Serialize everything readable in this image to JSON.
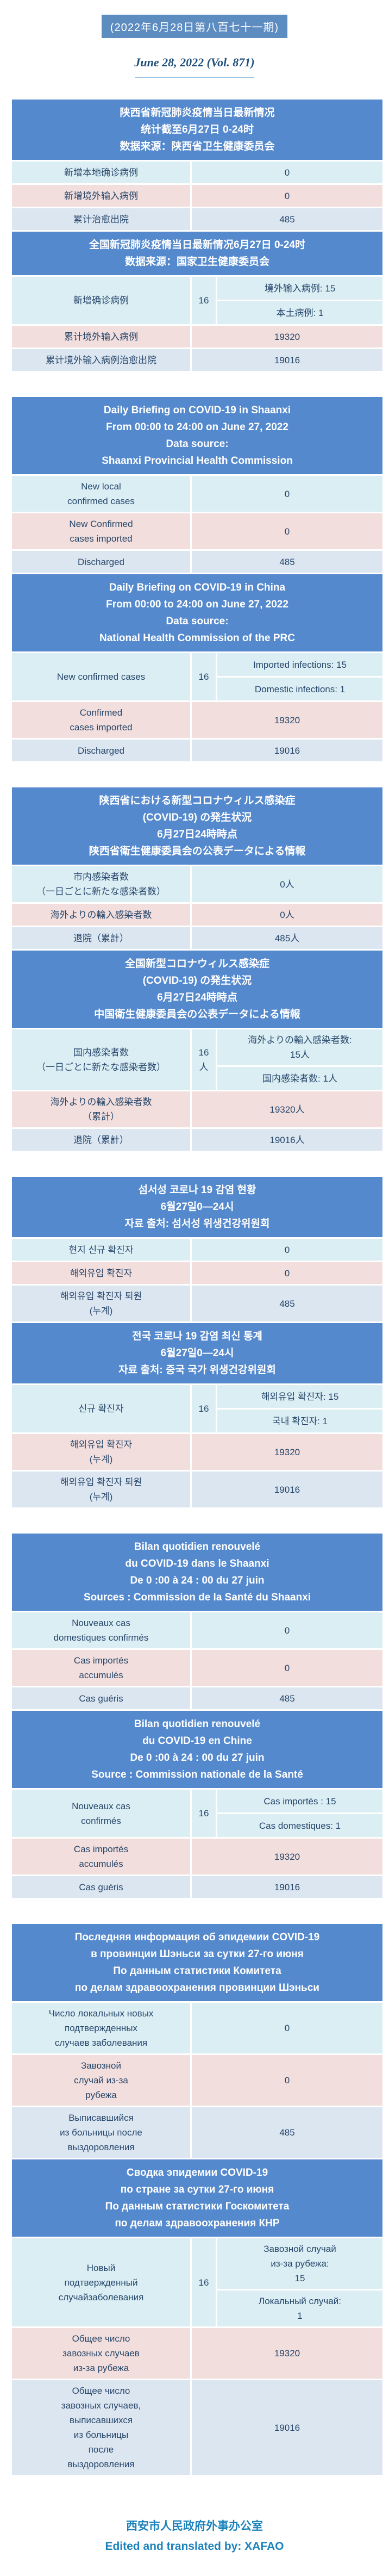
{
  "header": {
    "issue_badge": "(2022年6月28日第八百七十一期)",
    "date_line": "June 28, 2022 (Vol. 871)"
  },
  "colors": {
    "header_blue": "#5589cd",
    "badge_blue": "#5d8cc1",
    "row_cyan": "#dbeef4",
    "row_pink": "#f2dedc",
    "row_periwinkle": "#dce6f1",
    "text_navy": "#27476b",
    "footer_blue": "#1b82bb",
    "date_navy": "#1f4e79"
  },
  "sections": [
    {
      "id": "zh",
      "tables": [
        {
          "header_lines": [
            "陕西省新冠肺炎疫情当日最新情况",
            "统计截至6月27日 0-24时",
            "数据来源：陕西省卫生健康委员会"
          ],
          "rows": [
            {
              "label": "新增本地确诊病例",
              "value": "0",
              "tone": "cyan"
            },
            {
              "label": "新增境外输入病例",
              "value": "0",
              "tone": "pink"
            },
            {
              "label": "累计治愈出院",
              "value": "485",
              "tone": "peri"
            }
          ]
        },
        {
          "header_lines": [
            "全国新冠肺炎疫情当日最新情况6月27日 0-24时",
            "数据来源：国家卫生健康委员会"
          ],
          "rows": [
            {
              "label": "新增确诊病例",
              "value": "16",
              "tone": "cyan",
              "subs": [
                "境外输入病例: 15",
                "本土病例: 1"
              ]
            },
            {
              "label": "累计境外输入病例",
              "value": "19320",
              "tone": "pink"
            },
            {
              "label": "累计境外输入病例治愈出院",
              "value": "19016",
              "tone": "peri"
            }
          ]
        }
      ]
    },
    {
      "id": "en",
      "tables": [
        {
          "header_lines": [
            "Daily Briefing on COVID-19 in Shaanxi",
            "From 00:00 to 24:00 on June 27, 2022",
            "Data source:",
            "Shaanxi Provincial Health Commission"
          ],
          "rows": [
            {
              "label": "New local\nconfirmed cases",
              "value": "0",
              "tone": "cyan"
            },
            {
              "label": "New Confirmed\ncases imported",
              "value": "0",
              "tone": "pink"
            },
            {
              "label": "Discharged",
              "value": "485",
              "tone": "peri"
            }
          ]
        },
        {
          "header_lines": [
            "Daily Briefing on COVID-19 in China",
            "From 00:00 to 24:00 on June 27, 2022",
            "Data source:",
            "National Health Commission of the PRC"
          ],
          "rows": [
            {
              "label": "New confirmed cases",
              "value": "16",
              "tone": "cyan",
              "subs": [
                "Imported infections: 15",
                "Domestic infections: 1"
              ]
            },
            {
              "label": "Confirmed\ncases imported",
              "value": "19320",
              "tone": "pink"
            },
            {
              "label": "Discharged",
              "value": "19016",
              "tone": "peri"
            }
          ]
        }
      ]
    },
    {
      "id": "ja",
      "tables": [
        {
          "header_lines": [
            "陕西省における新型コロナウィルス感染症",
            "(COVID-19) の発生状況",
            "6月27日24時時点",
            "陕西省衛生健康委員会の公表データによる情報"
          ],
          "rows": [
            {
              "label": "市内感染者数\n（一日ごとに新たな感染者数）",
              "value": "0人",
              "tone": "cyan"
            },
            {
              "label": "海外よりの輸入感染者数",
              "value": "0人",
              "tone": "pink"
            },
            {
              "label": "退院（累計）",
              "value": "485人",
              "tone": "peri"
            }
          ]
        },
        {
          "header_lines": [
            "全国新型コロナウィルス感染症",
            "(COVID-19) の発生状況",
            "6月27日24時時点",
            "中国衛生健康委員会の公表データによる情報"
          ],
          "rows": [
            {
              "label": "国内感染者数\n（一日ごとに新たな感染者数）",
              "value": "16人",
              "tone": "cyan",
              "subs": [
                "海外よりの輸入感染者数:\n15人",
                "国内感染者数: 1人"
              ]
            },
            {
              "label": "海外よりの輸入感染者数\n（累計）",
              "value": "19320人",
              "tone": "pink"
            },
            {
              "label": "退院（累計）",
              "value": "19016人",
              "tone": "peri"
            }
          ]
        }
      ]
    },
    {
      "id": "ko",
      "tables": [
        {
          "header_lines": [
            "섬서성 코로나 19 감염 현황",
            "6월27일0—24시",
            "자료 출처: 섬서성 위생건강위원회"
          ],
          "rows": [
            {
              "label": "현지 신규 확진자",
              "value": "0",
              "tone": "cyan"
            },
            {
              "label": "해외유입 확진자",
              "value": "0",
              "tone": "pink"
            },
            {
              "label": "해외유입 확진자 퇴원\n(누계)",
              "value": "485",
              "tone": "peri"
            }
          ]
        },
        {
          "header_lines": [
            "전국 코로나 19 감염 최신 통계",
            "6월27일0—24시",
            "자료 출처: 중국 국가 위생건강위원회"
          ],
          "rows": [
            {
              "label": "신규 확진자",
              "value": "16",
              "tone": "cyan",
              "subs": [
                "해외유입 확진자: 15",
                "국내 확진자: 1"
              ]
            },
            {
              "label": "해외유입 확진자\n(누계)",
              "value": "19320",
              "tone": "pink"
            },
            {
              "label": "해외유입 확진자 퇴원\n(누계)",
              "value": "19016",
              "tone": "peri"
            }
          ]
        }
      ]
    },
    {
      "id": "fr",
      "tables": [
        {
          "header_lines": [
            "Bilan quotidien renouvelé",
            "du COVID-19 dans le Shaanxi",
            "De 0 :00 à 24 : 00 du 27 juin",
            "Sources : Commission de la Santé du Shaanxi"
          ],
          "rows": [
            {
              "label": "Nouveaux cas\ndomestiques confirmés",
              "value": "0",
              "tone": "cyan"
            },
            {
              "label": "Cas importés\naccumulés",
              "value": "0",
              "tone": "pink"
            },
            {
              "label": "Cas guéris",
              "value": "485",
              "tone": "peri"
            }
          ]
        },
        {
          "header_lines": [
            "Bilan quotidien renouvelé",
            "du COVID-19 en Chine",
            "De 0 :00 à 24 : 00 du 27 juin",
            "Source : Commission nationale de la Santé"
          ],
          "rows": [
            {
              "label": "Nouveaux cas\nconfirmés",
              "value": "16",
              "tone": "cyan",
              "subs": [
                "Cas importés : 15",
                "Cas domestiques: 1"
              ]
            },
            {
              "label": "Cas importés\naccumulés",
              "value": "19320",
              "tone": "pink"
            },
            {
              "label": "Cas guéris",
              "value": "19016",
              "tone": "peri"
            }
          ]
        }
      ]
    },
    {
      "id": "ru",
      "tables": [
        {
          "header_lines": [
            "Последняя информация об эпидемии COVID-19",
            "в провинции Шэньси за сутки 27-го июня",
            "По данным статистики Комитета",
            "по делам здравоохранения провинции Шэньси"
          ],
          "rows": [
            {
              "label": "Число локальных новых\nподтвержденных\nслучаев заболевания",
              "value": "0",
              "tone": "cyan"
            },
            {
              "label": "Завозной\nслучай из-за\nрубежа",
              "value": "0",
              "tone": "pink"
            },
            {
              "label": "Выписавшийся\nиз больницы после\nвыздоровления",
              "value": "485",
              "tone": "peri"
            }
          ]
        },
        {
          "header_lines": [
            "Сводка эпидемии COVID-19",
            "по стране за сутки 27-го июня",
            "По данным статистики Госкомитета",
            "по делам здравоохранения КНР"
          ],
          "rows": [
            {
              "label": "Новый\nподтвержденный\nслучайзаболевания",
              "value": "16",
              "tone": "cyan",
              "subs": [
                "Завозной случай\nиз-за рубежа:\n15",
                "Локальный случай:\n1"
              ]
            },
            {
              "label": "Общее число\nзавозных случаев\nиз-за рубежа",
              "value": "19320",
              "tone": "pink"
            },
            {
              "label": "Общее число\nзавозных случаев,\nвыписавшихся\nиз больницы\nпосле\nвыздоровления",
              "value": "19016",
              "tone": "peri"
            }
          ]
        }
      ]
    }
  ],
  "footer": {
    "org": "西安市人民政府外事办公室",
    "credit": "Edited and translated by: XAFAO"
  }
}
